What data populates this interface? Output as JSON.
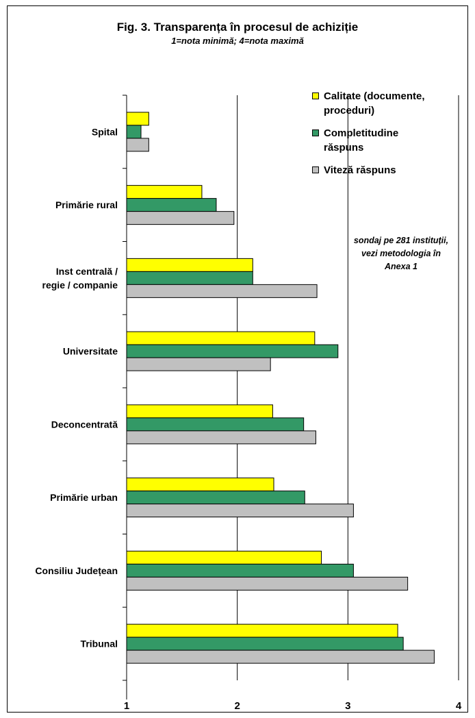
{
  "title": "Fig. 3. Transparența în procesul de achiziție",
  "subtitle": "1=nota minimă; 4=nota maximă",
  "annotation": "sondaj pe 281 instituții, vezi metodologia în Anexa 1",
  "colors": {
    "series_1": "#ffff00",
    "series_2": "#339966",
    "series_3": "#c0c0c0"
  },
  "chart_data": {
    "type": "bar",
    "orientation": "horizontal",
    "title": "Fig. 3. Transparența în procesul de achiziție",
    "subtitle": "1=nota minimă; 4=nota maximă",
    "categories": [
      "Spital",
      "Primărie rural",
      "Inst centrală / regie / companie",
      "Universitate",
      "Deconcentrată",
      "Primărie urban",
      "Consiliu Județean",
      "Tribunal"
    ],
    "category_label_lines": [
      [
        "Spital"
      ],
      [
        "Primărie rural"
      ],
      [
        "Inst centrală /",
        "regie / companie"
      ],
      [
        "Universitate"
      ],
      [
        "Deconcentrată"
      ],
      [
        "Primărie urban"
      ],
      [
        "Consiliu Județean"
      ],
      [
        "Tribunal"
      ]
    ],
    "series": [
      {
        "name": "Calitate (documente, proceduri)",
        "legend_lines": [
          "Calitate (documente,",
          "proceduri)"
        ],
        "color": "#ffff00",
        "values": [
          1.2,
          1.68,
          2.14,
          2.7,
          2.32,
          2.33,
          2.76,
          3.45
        ]
      },
      {
        "name": "Completitudine răspuns",
        "legend_lines": [
          "Completitudine",
          "răspuns"
        ],
        "color": "#339966",
        "values": [
          1.13,
          1.81,
          2.14,
          2.91,
          2.6,
          2.61,
          3.05,
          3.5
        ]
      },
      {
        "name": "Viteză răspuns",
        "legend_lines": [
          "Viteză răspuns"
        ],
        "color": "#c0c0c0",
        "values": [
          1.2,
          1.97,
          2.72,
          2.3,
          2.71,
          3.05,
          3.54,
          3.78
        ]
      }
    ],
    "xlim": [
      1,
      4
    ],
    "xticks": [
      "1",
      "2",
      "3",
      "4"
    ],
    "gridlines": "vertical",
    "legend_position": "top-right",
    "xlabel": "",
    "ylabel": ""
  }
}
